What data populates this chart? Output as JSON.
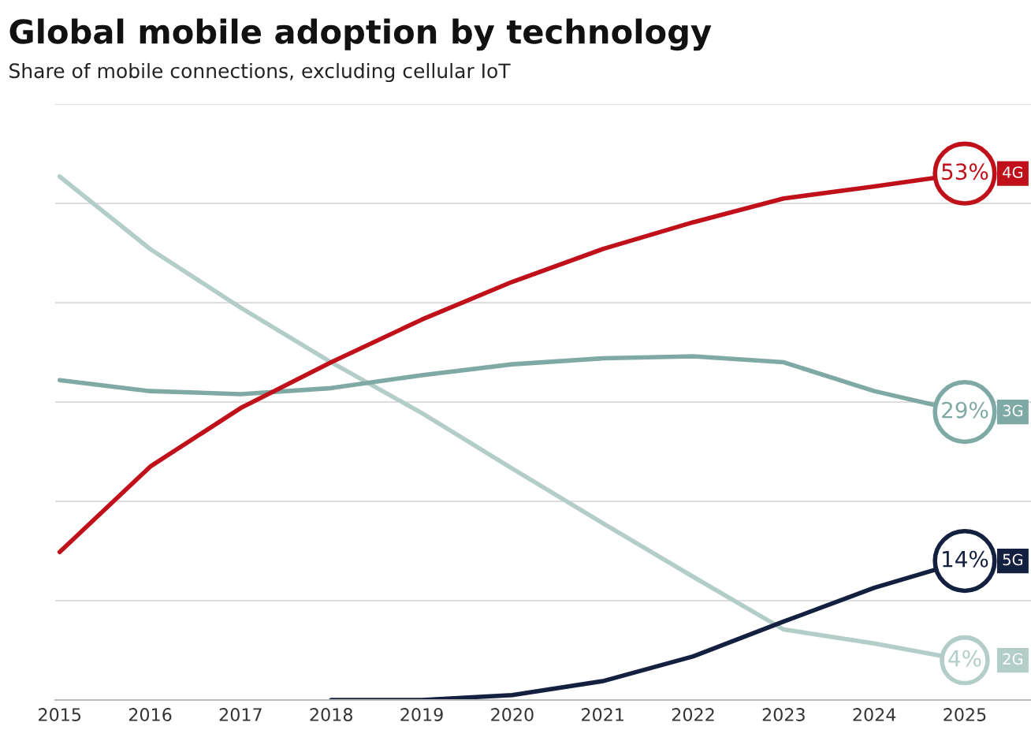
{
  "chart_data": {
    "type": "line",
    "title": "Global mobile adoption by technology",
    "subtitle": "Share of mobile connections, excluding cellular IoT",
    "categories": [
      "2015",
      "2016",
      "2017",
      "2018",
      "2019",
      "2020",
      "2021",
      "2022",
      "2023",
      "2024",
      "2025"
    ],
    "series": [
      {
        "name": "2G",
        "color": "#b3cdc9",
        "values": [
          52.7,
          45.4,
          39.5,
          34.0,
          28.9,
          23.3,
          17.8,
          12.4,
          7.1,
          5.7,
          4
        ],
        "value_labels": [
          null,
          null,
          null,
          null,
          null,
          null,
          null,
          null,
          null,
          null,
          "4%"
        ]
      },
      {
        "name": "3G",
        "color": "#7fa9a5",
        "values": [
          32.2,
          31.1,
          30.8,
          31.4,
          32.7,
          33.8,
          34.4,
          34.6,
          34.0,
          31.1,
          29
        ],
        "value_labels": [
          null,
          null,
          null,
          null,
          null,
          null,
          null,
          null,
          null,
          null,
          "29%"
        ]
      },
      {
        "name": "4G",
        "color": "#c0101a",
        "values": [
          14.9,
          23.5,
          29.4,
          34.0,
          38.3,
          42.1,
          45.4,
          48.1,
          50.5,
          51.7,
          53
        ],
        "value_labels": [
          null,
          null,
          null,
          null,
          null,
          null,
          null,
          null,
          null,
          null,
          "53%"
        ]
      },
      {
        "name": "5G",
        "color": "#14203f",
        "values": [
          null,
          null,
          null,
          0,
          0,
          0.5,
          1.9,
          4.4,
          7.9,
          11.3,
          14
        ],
        "value_labels": [
          null,
          null,
          null,
          null,
          null,
          null,
          null,
          null,
          null,
          null,
          "14%"
        ]
      }
    ],
    "ylim": [
      0,
      60
    ],
    "yticks": [
      {
        "value": 0,
        "label": null
      },
      {
        "value": 10,
        "label": null
      },
      {
        "value": 20,
        "label": null
      },
      {
        "value": 30,
        "label": null
      },
      {
        "value": 40,
        "label": null
      },
      {
        "value": 50,
        "label": null
      },
      {
        "value": 60,
        "label": null
      }
    ],
    "grid": "y",
    "legend": false,
    "marker": "none",
    "line_style": "solid",
    "tick_labels": "x"
  }
}
